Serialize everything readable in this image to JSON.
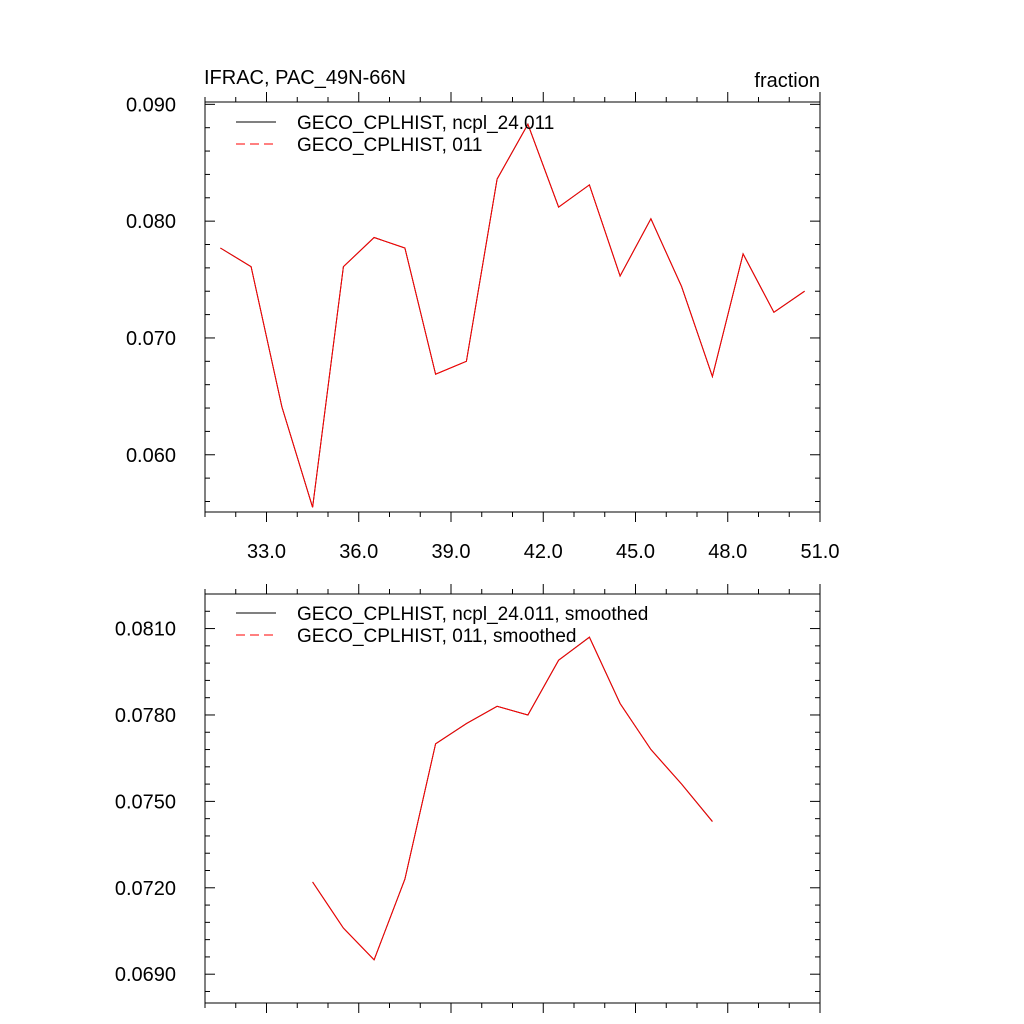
{
  "chart_data": [
    {
      "type": "line",
      "title": "IFRAC, PAC_49N-66N",
      "units_label": "fraction",
      "xlim": [
        31.0,
        51.0
      ],
      "ylim": [
        0.0551,
        0.0902
      ],
      "x_ticks": [
        "33.0",
        "36.0",
        "39.0",
        "42.0",
        "45.0",
        "48.0",
        "51.0"
      ],
      "x_tick_values": [
        33,
        36,
        39,
        42,
        45,
        48,
        51
      ],
      "y_ticks": [
        "0.060",
        "0.070",
        "0.080",
        "0.090"
      ],
      "y_tick_values": [
        0.06,
        0.07,
        0.08,
        0.09
      ],
      "legend": "top-left inside",
      "x": [
        31.5,
        32.5,
        33.5,
        34.5,
        35.5,
        36.5,
        37.5,
        38.5,
        39.5,
        40.5,
        41.5,
        42.5,
        43.5,
        44.5,
        45.5,
        46.5,
        47.5,
        48.5,
        49.5,
        50.5
      ],
      "series": [
        {
          "name": "GECO_CPLHIST, ncpl_24.011",
          "color": "#000000",
          "dash": "solid",
          "values": [
            0.0777,
            0.0761,
            0.0641,
            0.0555,
            0.0761,
            0.0786,
            0.0777,
            0.0669,
            0.068,
            0.0836,
            0.0883,
            0.0812,
            0.0831,
            0.0753,
            0.0802,
            0.0744,
            0.0667,
            0.0772,
            0.0722,
            0.074
          ]
        },
        {
          "name": "GECO_CPLHIST, 011",
          "color": "#ff0000",
          "dash": "dashed",
          "values": [
            0.0777,
            0.0761,
            0.0641,
            0.0555,
            0.0761,
            0.0786,
            0.0777,
            0.0669,
            0.068,
            0.0836,
            0.0883,
            0.0812,
            0.0831,
            0.0753,
            0.0802,
            0.0744,
            0.0667,
            0.0772,
            0.0722,
            0.074
          ]
        }
      ]
    },
    {
      "type": "line",
      "xlim": [
        31.0,
        51.0
      ],
      "ylim": [
        0.068,
        0.0822
      ],
      "x_tick_values": [
        33,
        36,
        39,
        42,
        45,
        48,
        51
      ],
      "y_ticks": [
        "0.0690",
        "0.0720",
        "0.0750",
        "0.0780",
        "0.0810"
      ],
      "y_tick_values": [
        0.069,
        0.072,
        0.075,
        0.078,
        0.081
      ],
      "legend": "top-left inside",
      "x": [
        34.5,
        35.5,
        36.5,
        37.5,
        38.5,
        39.5,
        40.5,
        41.5,
        42.5,
        43.5,
        44.5,
        45.5,
        46.5,
        47.5
      ],
      "series": [
        {
          "name": "GECO_CPLHIST, ncpl_24.011, smoothed",
          "color": "#000000",
          "dash": "solid",
          "values": [
            0.0722,
            0.0706,
            0.0695,
            0.0723,
            0.077,
            0.0777,
            0.0783,
            0.078,
            0.0799,
            0.0807,
            0.0784,
            0.0768,
            0.0756,
            0.0743
          ]
        },
        {
          "name": "GECO_CPLHIST, 011, smoothed",
          "color": "#ff0000",
          "dash": "dashed",
          "values": [
            0.0722,
            0.0706,
            0.0695,
            0.0723,
            0.077,
            0.0777,
            0.0783,
            0.078,
            0.0799,
            0.0807,
            0.0784,
            0.0768,
            0.0756,
            0.0743
          ]
        }
      ]
    }
  ]
}
